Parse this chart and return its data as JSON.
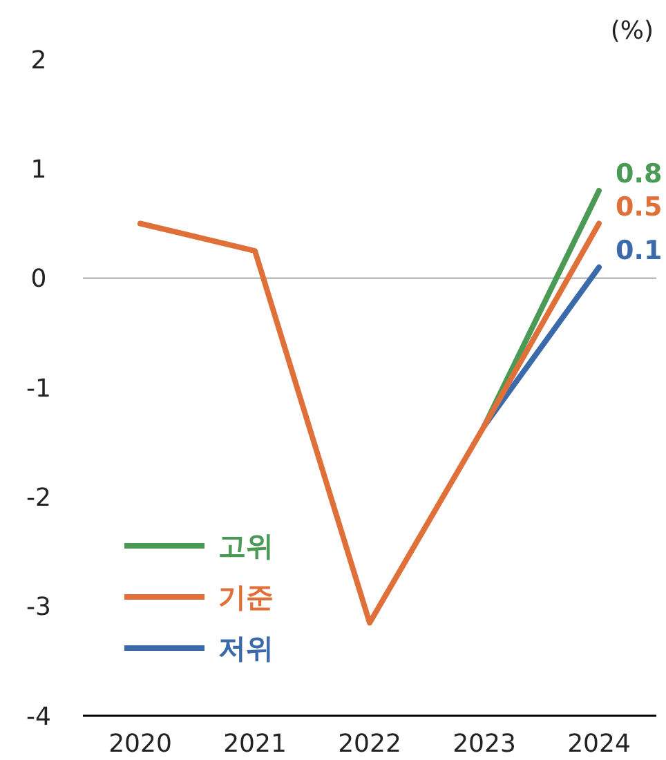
{
  "chart_data": {
    "type": "line",
    "ylabel": "(%)",
    "categories": [
      "2020",
      "2021",
      "2022",
      "2023",
      "2024"
    ],
    "series": [
      {
        "name": "고위",
        "color": "#4a9a55",
        "values": [
          null,
          null,
          null,
          -1.35,
          0.8
        ],
        "value_labels": [
          null,
          null,
          null,
          null,
          "0.8"
        ]
      },
      {
        "name": "기준",
        "color": "#e0703a",
        "values": [
          0.5,
          0.25,
          -3.15,
          -1.35,
          0.5
        ],
        "value_labels": [
          null,
          null,
          null,
          null,
          "0.5"
        ]
      },
      {
        "name": "저위",
        "color": "#3a6aaa",
        "values": [
          null,
          null,
          null,
          -1.35,
          0.1
        ],
        "value_labels": [
          null,
          null,
          null,
          null,
          "0.1"
        ]
      }
    ],
    "ylim": [
      -4,
      2
    ],
    "yticks": [
      -4,
      -3,
      -2,
      -1,
      0,
      1,
      2
    ],
    "ref_lines": [
      {
        "axis": "y",
        "value": 0,
        "color": "#b0b0b0"
      }
    ],
    "grid": false,
    "legend": "bottom left",
    "marker": "none",
    "line_style": "solid"
  }
}
